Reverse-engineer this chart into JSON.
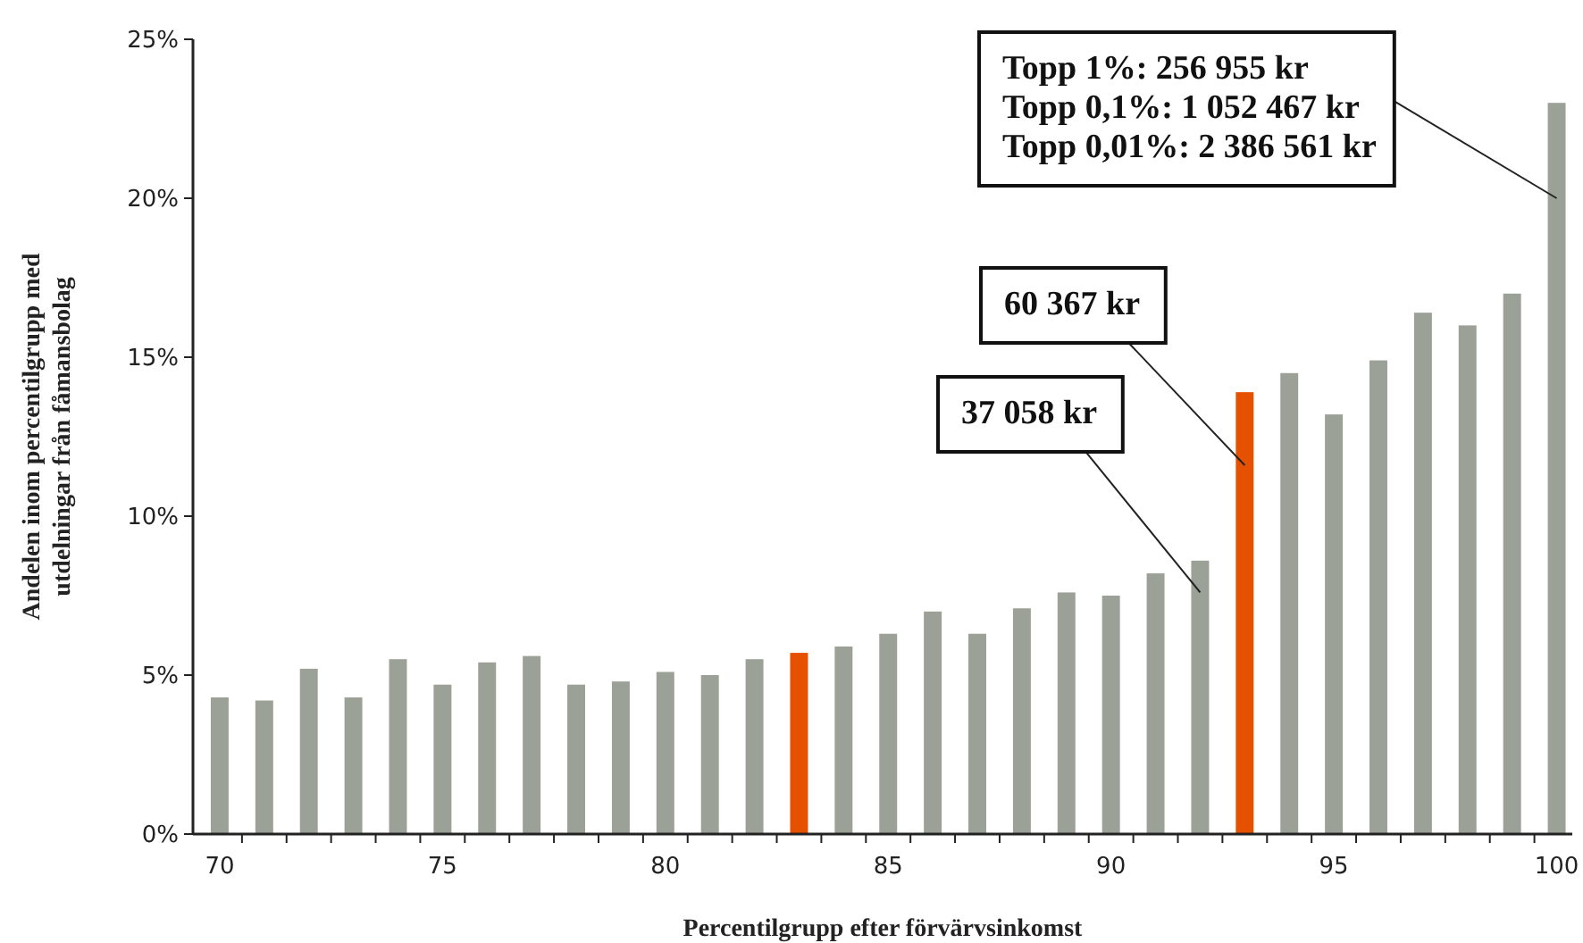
{
  "chart_data": {
    "type": "bar",
    "xlabel": "Percentilgrupp efter förvärvsinkomst",
    "ylabel": "Andelen inom percentilgrupp med utdelningar från fåmansbolag",
    "x": [
      70,
      71,
      72,
      73,
      74,
      75,
      76,
      77,
      78,
      79,
      80,
      81,
      82,
      83,
      84,
      85,
      86,
      87,
      88,
      89,
      90,
      91,
      92,
      93,
      94,
      95,
      96,
      97,
      98,
      99,
      100
    ],
    "values": [
      4.3,
      4.2,
      5.2,
      4.3,
      5.5,
      4.7,
      5.4,
      5.6,
      4.7,
      4.8,
      5.1,
      5.0,
      5.5,
      5.7,
      5.9,
      6.3,
      7.0,
      6.3,
      7.1,
      7.6,
      7.5,
      8.2,
      8.6,
      13.9,
      14.5,
      13.2,
      14.9,
      16.4,
      16.0,
      17.0,
      23.0
    ],
    "colors": [
      "#9ba196",
      "#9ba196",
      "#9ba196",
      "#9ba196",
      "#9ba196",
      "#9ba196",
      "#9ba196",
      "#9ba196",
      "#9ba196",
      "#9ba196",
      "#9ba196",
      "#9ba196",
      "#9ba196",
      "#e65100",
      "#9ba196",
      "#9ba196",
      "#9ba196",
      "#9ba196",
      "#9ba196",
      "#9ba196",
      "#9ba196",
      "#9ba196",
      "#9ba196",
      "#e65100",
      "#9ba196",
      "#9ba196",
      "#9ba196",
      "#9ba196",
      "#9ba196",
      "#9ba196",
      "#9ba196"
    ],
    "xlim": [
      69.4,
      100.35
    ],
    "xticks": [
      70,
      {
        "value": 70.5,
        "label": null
      },
      {
        "value": 71.5,
        "label": null
      },
      {
        "value": 72.5,
        "label": null
      },
      {
        "value": 73.5,
        "label": null
      },
      {
        "value": 74.5,
        "label": null
      },
      75,
      {
        "value": 75.5,
        "label": null
      },
      {
        "value": 76.5,
        "label": null
      },
      {
        "value": 77.5,
        "label": null
      },
      {
        "value": 78.5,
        "label": null
      },
      {
        "value": 79.5,
        "label": null
      },
      80,
      {
        "value": 80.5,
        "label": null
      },
      {
        "value": 81.5,
        "label": null
      },
      {
        "value": 82.5,
        "label": null
      },
      {
        "value": 83.5,
        "label": null
      },
      {
        "value": 84.5,
        "label": null
      },
      85,
      {
        "value": 85.5,
        "label": null
      },
      {
        "value": 86.5,
        "label": null
      },
      {
        "value": 87.5,
        "label": null
      },
      {
        "value": 88.5,
        "label": null
      },
      {
        "value": 89.5,
        "label": null
      },
      90,
      {
        "value": 90.5,
        "label": null
      },
      {
        "value": 91.5,
        "label": null
      },
      {
        "value": 92.5,
        "label": null
      },
      {
        "value": 93.5,
        "label": null
      },
      {
        "value": 94.5,
        "label": null
      },
      95,
      {
        "value": 95.5,
        "label": null
      },
      {
        "value": 96.5,
        "label": null
      },
      {
        "value": 97.5,
        "label": null
      },
      {
        "value": 98.5,
        "label": null
      },
      {
        "value": 99.5,
        "label": null
      },
      100
    ],
    "ylim": [
      0,
      25
    ],
    "yticks": [
      {
        "value": 0,
        "label": "0%"
      },
      {
        "value": 5,
        "label": "5%"
      },
      {
        "value": 10,
        "label": "10%"
      },
      {
        "value": 15,
        "label": "15%"
      },
      {
        "value": 20,
        "label": "20%"
      },
      {
        "value": 25,
        "label": "25%"
      }
    ],
    "grid": false,
    "annotations": [
      {
        "text": "37 058 kr",
        "x": 92,
        "y": 7.6
      },
      {
        "text": "60 367 kr",
        "x": 93,
        "y": 11.6
      },
      {
        "text": "Topp 1%: 256 955 kr\nTopp 0,1%: 1 052 467 kr\nTopp 0,01%: 2 386 561 kr",
        "x": 100,
        "y": 20.0
      }
    ]
  }
}
